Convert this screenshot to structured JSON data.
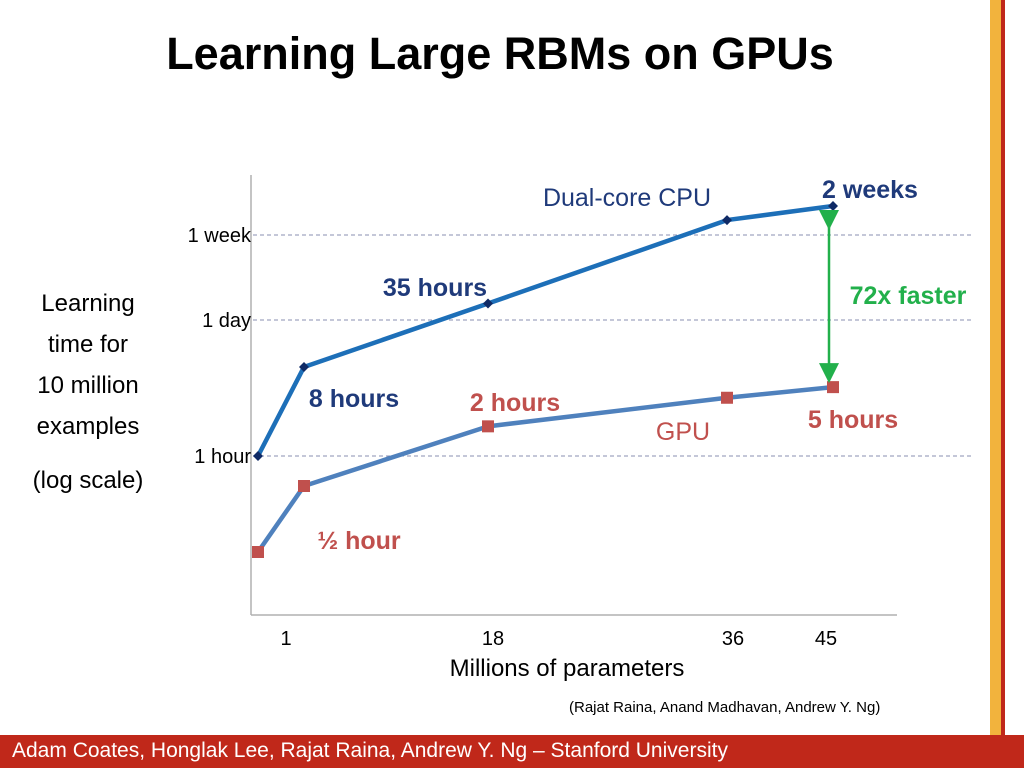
{
  "title": "Learning Large RBMs on GPUs",
  "footer": "Adam Coates, Honglak Lee, Rajat Raina, Andrew Y. Ng – Stanford University",
  "citation": "(Rajat Raina, Anand Madhavan, Andrew Y. Ng)",
  "colors": {
    "cpu_line": "#1d6fb8",
    "cpu_marker": "#0f2a66",
    "gpu_line": "#4f81bd",
    "gpu_marker": "#c0504d",
    "cpu_text": "#1f3a7a",
    "gpu_text": "#c0504d",
    "arrow": "#22b04b",
    "footer_bg": "#c0281a",
    "accent_orange": "#f2b33d"
  },
  "chart_data": {
    "type": "line",
    "xlabel": "Millions of parameters",
    "ylabel": [
      "Learning",
      "time for",
      "10 million",
      "examples"
    ],
    "ylabel_scale": "(log scale)",
    "y_scale": "log",
    "x_ticks": [
      {
        "label": "1",
        "value": 1
      },
      {
        "label": "18",
        "value": 18
      },
      {
        "label": "36",
        "value": 36
      },
      {
        "label": "45",
        "value": 45
      }
    ],
    "y_ticks": [
      {
        "label": "1 week",
        "hours": 168
      },
      {
        "label": "1 day",
        "hours": 24
      },
      {
        "label": "1 hour",
        "hours": 1
      }
    ],
    "series": [
      {
        "name": "Dual-core CPU",
        "points": [
          {
            "x": 0,
            "hours": 1
          },
          {
            "x": 1,
            "hours": 8
          },
          {
            "x": 18,
            "hours": 35
          },
          {
            "x": 36,
            "hours": 240
          },
          {
            "x": 45,
            "hours": 336
          }
        ]
      },
      {
        "name": "GPU",
        "points": [
          {
            "x": 0,
            "hours": 0.08
          },
          {
            "x": 1,
            "hours": 0.5
          },
          {
            "x": 18,
            "hours": 2
          },
          {
            "x": 36,
            "hours": 3.9
          },
          {
            "x": 45,
            "hours": 5
          }
        ]
      }
    ],
    "annotations": {
      "cpu_8h": "8 hours",
      "cpu_35h": "35 hours",
      "cpu_2w": "2 weeks",
      "gpu_half": "½ hour",
      "gpu_2h": "2 hours",
      "gpu_5h": "5 hours",
      "speedup": "72x faster"
    }
  }
}
